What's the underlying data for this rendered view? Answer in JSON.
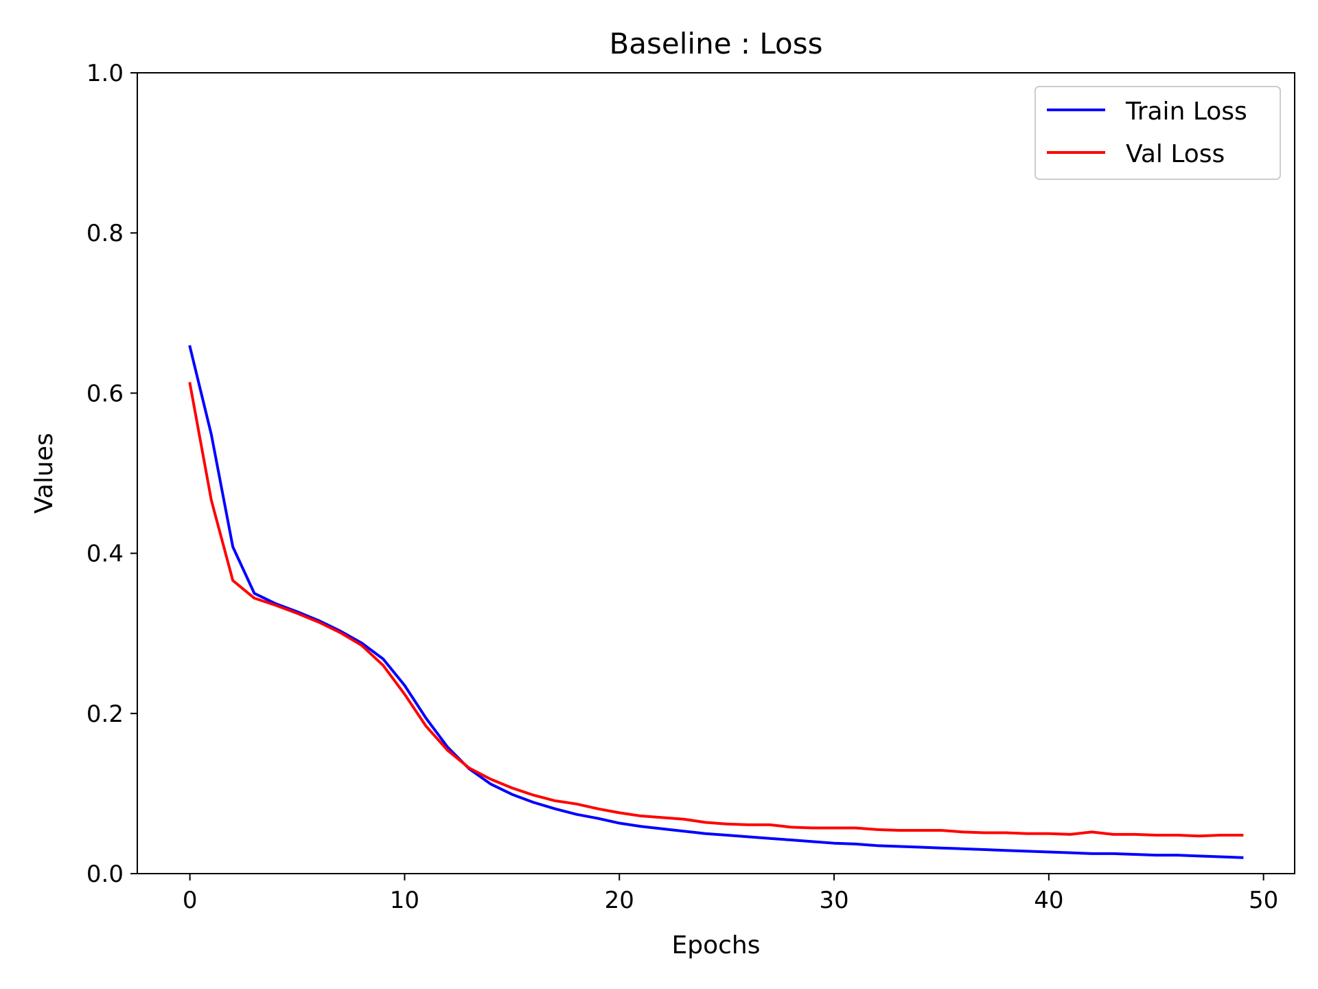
{
  "chart_data": {
    "type": "line",
    "title": "Baseline : Loss",
    "xlabel": "Epochs",
    "ylabel": "Values",
    "xlim": [
      -2.45,
      51.45
    ],
    "ylim": [
      0,
      1
    ],
    "xticks": [
      0,
      10,
      20,
      30,
      40,
      50
    ],
    "xtick_labels": [
      "0",
      "10",
      "20",
      "30",
      "40",
      "50"
    ],
    "yticks": [
      0,
      0.2,
      0.4,
      0.6,
      0.8,
      1.0
    ],
    "ytick_labels": [
      "0.0",
      "0.2",
      "0.4",
      "0.6",
      "0.8",
      "1.0"
    ],
    "grid": false,
    "legend_position": "top-right",
    "x": [
      0,
      1,
      2,
      3,
      4,
      5,
      6,
      7,
      8,
      9,
      10,
      11,
      12,
      13,
      14,
      15,
      16,
      17,
      18,
      19,
      20,
      21,
      22,
      23,
      24,
      25,
      26,
      27,
      28,
      29,
      30,
      31,
      32,
      33,
      34,
      35,
      36,
      37,
      38,
      39,
      40,
      41,
      42,
      43,
      44,
      45,
      46,
      47,
      48,
      49
    ],
    "series": [
      {
        "name": "Train Loss",
        "color": "#0000ff",
        "values": [
          0.658,
          0.548,
          0.408,
          0.35,
          0.337,
          0.327,
          0.316,
          0.303,
          0.288,
          0.268,
          0.235,
          0.194,
          0.158,
          0.131,
          0.112,
          0.099,
          0.089,
          0.081,
          0.074,
          0.069,
          0.063,
          0.059,
          0.056,
          0.053,
          0.05,
          0.048,
          0.046,
          0.044,
          0.042,
          0.04,
          0.038,
          0.037,
          0.035,
          0.034,
          0.033,
          0.032,
          0.031,
          0.03,
          0.029,
          0.028,
          0.027,
          0.026,
          0.025,
          0.025,
          0.024,
          0.023,
          0.023,
          0.022,
          0.021,
          0.02
        ]
      },
      {
        "name": "Val Loss",
        "color": "#ff0000",
        "values": [
          0.612,
          0.466,
          0.366,
          0.344,
          0.335,
          0.325,
          0.314,
          0.301,
          0.285,
          0.26,
          0.224,
          0.184,
          0.154,
          0.132,
          0.118,
          0.107,
          0.098,
          0.091,
          0.087,
          0.081,
          0.076,
          0.072,
          0.07,
          0.068,
          0.064,
          0.062,
          0.061,
          0.061,
          0.058,
          0.057,
          0.057,
          0.057,
          0.055,
          0.054,
          0.054,
          0.054,
          0.052,
          0.051,
          0.051,
          0.05,
          0.05,
          0.049,
          0.052,
          0.049,
          0.049,
          0.048,
          0.048,
          0.047,
          0.048,
          0.048
        ]
      }
    ]
  }
}
